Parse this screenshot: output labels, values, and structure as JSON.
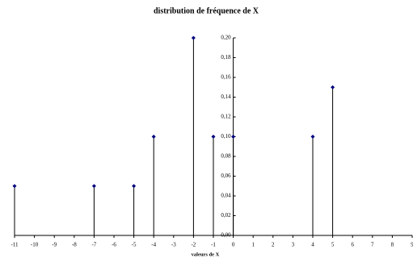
{
  "chart_data": {
    "type": "stem",
    "title": "distribution de fréquence de X",
    "x_label": "valeurs de X",
    "x": [
      -11,
      -7,
      -5,
      -4,
      -2,
      -1,
      0,
      4,
      5
    ],
    "values": [
      0.05,
      0.05,
      0.05,
      0.1,
      0.2,
      0.1,
      0.1,
      0.1,
      0.15
    ],
    "color": "#000080",
    "xlim": [
      -11,
      9
    ],
    "xticks": [
      -11,
      -10,
      -9,
      -8,
      -7,
      -6,
      -5,
      -4,
      -3,
      -2,
      -1,
      0,
      1,
      2,
      3,
      4,
      5,
      6,
      7,
      8,
      9
    ],
    "ylim": [
      0,
      0.2
    ],
    "yticks": [
      {
        "value": 0,
        "label": "0,00"
      },
      {
        "value": 0.02,
        "label": "0,02"
      },
      {
        "value": 0.04,
        "label": "0,04"
      },
      {
        "value": 0.06,
        "label": "0,06"
      },
      {
        "value": 0.08,
        "label": "0,08"
      },
      {
        "value": 0.1,
        "label": "0,10"
      },
      {
        "value": 0.12,
        "label": "0,12"
      },
      {
        "value": 0.14,
        "label": "0,14"
      },
      {
        "value": 0.16,
        "label": "0,16"
      },
      {
        "value": 0.18,
        "label": "0,18"
      },
      {
        "value": 0.2,
        "label": "0,20"
      }
    ],
    "grid": false
  }
}
